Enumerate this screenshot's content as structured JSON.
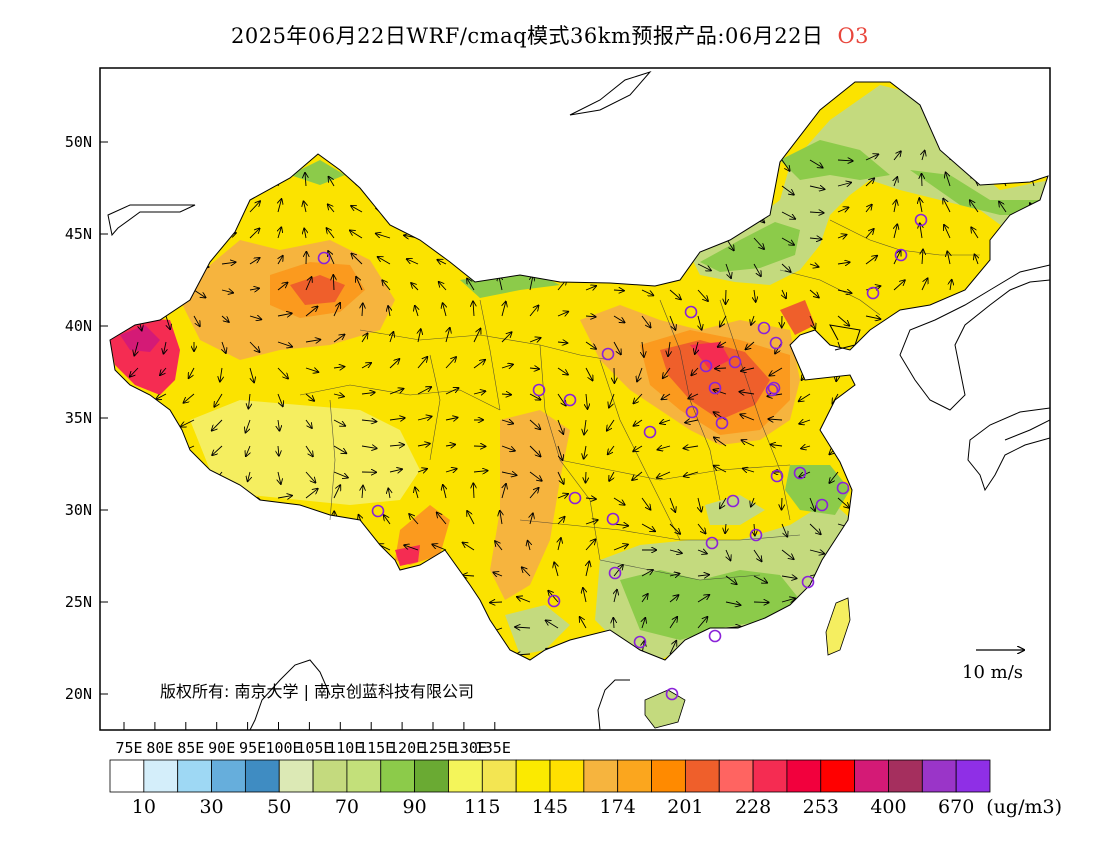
{
  "title": {
    "main": "2025年06月22日WRF/cmaq模式36km预报产品:06月22日",
    "pollutant": "O3",
    "pollutant_color": "#e8463c"
  },
  "axes": {
    "lon_ticks": [
      "75E",
      "80E",
      "85E",
      "90E",
      "95E",
      "100E",
      "105E",
      "110E",
      "115E",
      "120E",
      "125E",
      "130E",
      "135E"
    ],
    "lat_ticks": [
      "20N",
      "25N",
      "30N",
      "35N",
      "40N",
      "45N",
      "50N"
    ],
    "lon_range": [
      73.3,
      135
    ],
    "lat_range": [
      18,
      54
    ]
  },
  "copyright": "版权所有: 南京大学 | 南京创蓝科技有限公司",
  "scale_label": "10  m/s",
  "colorbar": {
    "colors": [
      "#ffffff",
      "#d4eefa",
      "#9ed8f4",
      "#66aedc",
      "#3f8cc2",
      "#dce9b5",
      "#c4da7e",
      "#c3e07a",
      "#8ccb4a",
      "#6aaa33",
      "#f4f55a",
      "#f3e552",
      "#fbea00",
      "#ffe000",
      "#f6b43e",
      "#fba61e",
      "#ff8a00",
      "#ef5f2b",
      "#ff6461",
      "#f52c52",
      "#f2003d",
      "#ff0000",
      "#d41a76",
      "#a52f5e",
      "#9a35c8",
      "#8f2fe6"
    ],
    "labels": [
      "10",
      "30",
      "50",
      "70",
      "90",
      "115",
      "145",
      "174",
      "201",
      "228",
      "253",
      "400",
      "670"
    ],
    "unit": "(ug/m3)"
  },
  "map_colors": {
    "background": "#ffffff",
    "base_yellow": "#fbe300",
    "light_yellow": "#f5ee60",
    "orange_light": "#f6b43e",
    "orange": "#fb9a1e",
    "red_orange": "#ef5f2b",
    "pink_red": "#f52c52",
    "magenta": "#d41a76",
    "green_light": "#c4da7e",
    "green": "#8ccb4a",
    "green_dark": "#6aaa33",
    "cyan": "#9ed8f4",
    "coast": "#000000",
    "station_ring": "#8a22d8"
  },
  "stations_count": 34
}
